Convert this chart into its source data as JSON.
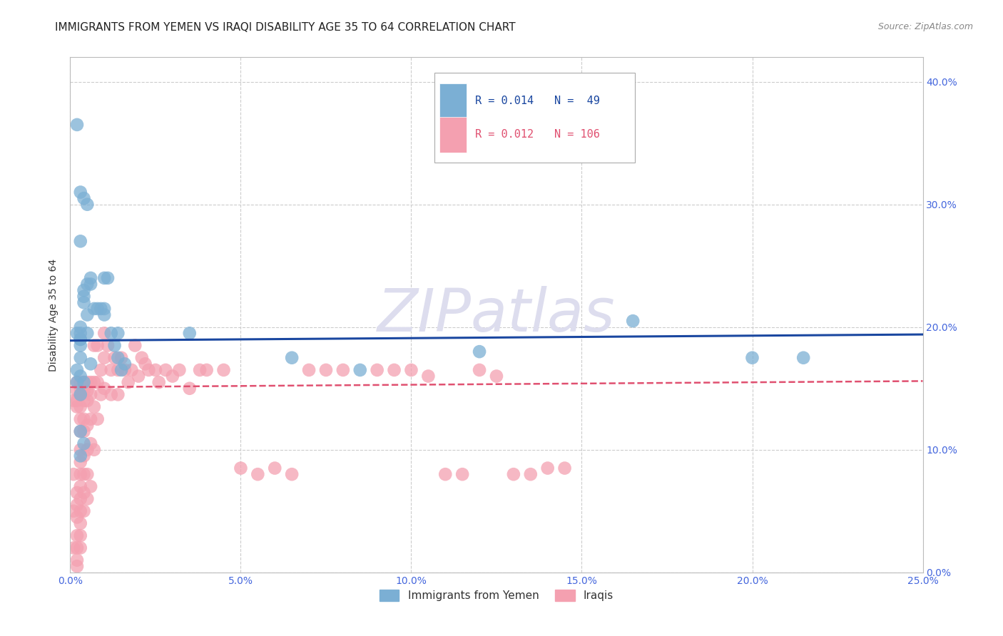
{
  "title": "IMMIGRANTS FROM YEMEN VS IRAQI DISABILITY AGE 35 TO 64 CORRELATION CHART",
  "source": "Source: ZipAtlas.com",
  "ylabel": "Disability Age 35 to 64",
  "xlim": [
    0.0,
    0.25
  ],
  "ylim": [
    0.0,
    0.42
  ],
  "xticks": [
    0.0,
    0.05,
    0.1,
    0.15,
    0.2,
    0.25
  ],
  "yticks": [
    0.0,
    0.1,
    0.2,
    0.3,
    0.4
  ],
  "legend_blue_R": "R = 0.014",
  "legend_blue_N": "N =  49",
  "legend_pink_R": "R = 0.012",
  "legend_pink_N": "N = 106",
  "blue_color": "#7BAFD4",
  "pink_color": "#F4A0B0",
  "trendline_blue_color": "#1A47A0",
  "trendline_pink_color": "#E05070",
  "axis_label_color": "#4466DD",
  "title_color": "#222222",
  "source_color": "#888888",
  "watermark_color": "#DDDDEE",
  "background_color": "#FFFFFF",
  "grid_color": "#CCCCCC",
  "title_fontsize": 11,
  "ylabel_fontsize": 10,
  "tick_fontsize": 10,
  "blue_x": [
    0.002,
    0.002,
    0.002,
    0.003,
    0.003,
    0.003,
    0.003,
    0.003,
    0.004,
    0.004,
    0.004,
    0.004,
    0.005,
    0.005,
    0.005,
    0.006,
    0.006,
    0.007,
    0.008,
    0.009,
    0.01,
    0.01,
    0.01,
    0.011,
    0.012,
    0.013,
    0.014,
    0.014,
    0.015,
    0.016,
    0.002,
    0.003,
    0.003,
    0.004,
    0.005,
    0.006,
    0.003,
    0.003,
    0.003,
    0.004,
    0.003,
    0.003,
    0.035,
    0.065,
    0.085,
    0.12,
    0.165,
    0.2,
    0.215
  ],
  "blue_y": [
    0.195,
    0.165,
    0.155,
    0.19,
    0.2,
    0.195,
    0.19,
    0.185,
    0.22,
    0.225,
    0.23,
    0.155,
    0.195,
    0.21,
    0.235,
    0.235,
    0.24,
    0.215,
    0.215,
    0.215,
    0.21,
    0.215,
    0.24,
    0.24,
    0.195,
    0.185,
    0.175,
    0.195,
    0.165,
    0.17,
    0.365,
    0.27,
    0.31,
    0.305,
    0.3,
    0.17,
    0.16,
    0.145,
    0.115,
    0.105,
    0.175,
    0.095,
    0.195,
    0.175,
    0.165,
    0.18,
    0.205,
    0.175,
    0.175
  ],
  "pink_x": [
    0.001,
    0.001,
    0.001,
    0.001,
    0.002,
    0.002,
    0.002,
    0.002,
    0.002,
    0.002,
    0.002,
    0.002,
    0.002,
    0.002,
    0.002,
    0.003,
    0.003,
    0.003,
    0.003,
    0.003,
    0.003,
    0.003,
    0.003,
    0.003,
    0.003,
    0.003,
    0.003,
    0.003,
    0.003,
    0.003,
    0.004,
    0.004,
    0.004,
    0.004,
    0.004,
    0.004,
    0.004,
    0.004,
    0.004,
    0.005,
    0.005,
    0.005,
    0.005,
    0.005,
    0.005,
    0.005,
    0.006,
    0.006,
    0.006,
    0.006,
    0.006,
    0.007,
    0.007,
    0.007,
    0.007,
    0.008,
    0.008,
    0.008,
    0.009,
    0.009,
    0.01,
    0.01,
    0.01,
    0.011,
    0.012,
    0.012,
    0.013,
    0.014,
    0.014,
    0.015,
    0.016,
    0.017,
    0.018,
    0.019,
    0.02,
    0.021,
    0.022,
    0.023,
    0.025,
    0.026,
    0.028,
    0.03,
    0.032,
    0.035,
    0.038,
    0.04,
    0.045,
    0.05,
    0.055,
    0.06,
    0.065,
    0.07,
    0.075,
    0.08,
    0.09,
    0.095,
    0.1,
    0.105,
    0.11,
    0.115,
    0.12,
    0.125,
    0.13,
    0.135,
    0.14,
    0.145
  ],
  "pink_y": [
    0.14,
    0.08,
    0.05,
    0.02,
    0.155,
    0.148,
    0.14,
    0.135,
    0.065,
    0.055,
    0.045,
    0.03,
    0.02,
    0.01,
    0.005,
    0.155,
    0.15,
    0.145,
    0.135,
    0.125,
    0.115,
    0.1,
    0.09,
    0.08,
    0.07,
    0.06,
    0.05,
    0.04,
    0.03,
    0.02,
    0.155,
    0.148,
    0.14,
    0.125,
    0.115,
    0.095,
    0.08,
    0.065,
    0.05,
    0.155,
    0.148,
    0.14,
    0.12,
    0.1,
    0.08,
    0.06,
    0.155,
    0.145,
    0.125,
    0.105,
    0.07,
    0.185,
    0.155,
    0.135,
    0.1,
    0.185,
    0.155,
    0.125,
    0.165,
    0.145,
    0.195,
    0.175,
    0.15,
    0.185,
    0.165,
    0.145,
    0.175,
    0.165,
    0.145,
    0.175,
    0.165,
    0.155,
    0.165,
    0.185,
    0.16,
    0.175,
    0.17,
    0.165,
    0.165,
    0.155,
    0.165,
    0.16,
    0.165,
    0.15,
    0.165,
    0.165,
    0.165,
    0.085,
    0.08,
    0.085,
    0.08,
    0.165,
    0.165,
    0.165,
    0.165,
    0.165,
    0.165,
    0.16,
    0.08,
    0.08,
    0.165,
    0.16,
    0.08,
    0.08,
    0.085,
    0.085
  ],
  "blue_trend_x": [
    0.0,
    0.25
  ],
  "blue_trend_y": [
    0.189,
    0.194
  ],
  "pink_trend_x": [
    0.0,
    0.25
  ],
  "pink_trend_y": [
    0.151,
    0.156
  ]
}
